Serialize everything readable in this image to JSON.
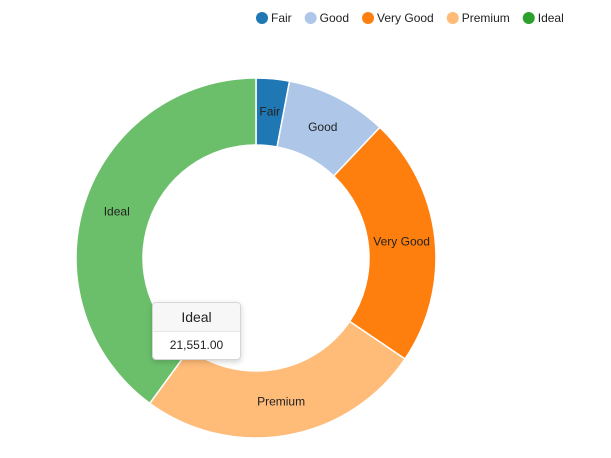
{
  "chart_data": {
    "type": "pie",
    "donut": true,
    "categories": [
      "Fair",
      "Good",
      "Very Good",
      "Premium",
      "Ideal"
    ],
    "values": [
      1610,
      4906,
      12082,
      13791,
      21551
    ],
    "colors": [
      "#1f77b4",
      "#aec7e8",
      "#ff7f0e",
      "#ffbb78",
      "#6bbf6b"
    ],
    "legend": {
      "placement": "top-right",
      "items": [
        {
          "label": "Fair",
          "color": "#1f77b4"
        },
        {
          "label": "Good",
          "color": "#aec7e8"
        },
        {
          "label": "Very Good",
          "color": "#ff7f0e"
        },
        {
          "label": "Premium",
          "color": "#ffbb78"
        },
        {
          "label": "Ideal",
          "color": "#2ca02c"
        }
      ]
    }
  },
  "tooltip": {
    "title": "Ideal",
    "value": "21,551.00"
  }
}
